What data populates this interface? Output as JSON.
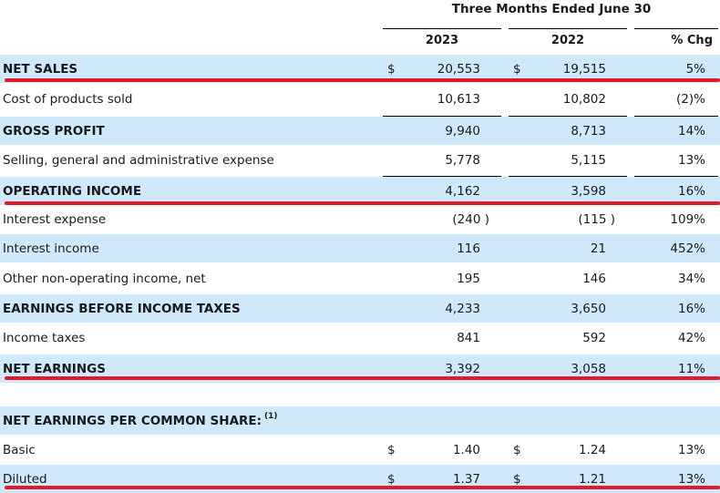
{
  "header": {
    "period_title": "Three Months Ended June 30",
    "col_2023": "2023",
    "col_2022": "2022",
    "col_chg": "% Chg"
  },
  "currency_symbol": "$",
  "rows": [
    {
      "label": "NET SALES",
      "v2023": "20,553",
      "v2022": "19,515",
      "chg": "5%"
    },
    {
      "label": "Cost of products sold",
      "v2023": "10,613",
      "v2022": "10,802",
      "chg": "(2)%"
    },
    {
      "label": "GROSS PROFIT",
      "v2023": "9,940",
      "v2022": "8,713",
      "chg": "14%"
    },
    {
      "label": "Selling, general and administrative expense",
      "v2023": "5,778",
      "v2022": "5,115",
      "chg": "13%"
    },
    {
      "label": "OPERATING INCOME",
      "v2023": "4,162",
      "v2022": "3,598",
      "chg": "16%"
    },
    {
      "label": "Interest expense",
      "v2023": "(240 )",
      "v2022": "(115 )",
      "chg": "109%"
    },
    {
      "label": "Interest income",
      "v2023": "116",
      "v2022": "21",
      "chg": "452%"
    },
    {
      "label": "Other non-operating income, net",
      "v2023": "195",
      "v2022": "146",
      "chg": "34%"
    },
    {
      "label": "EARNINGS BEFORE INCOME TAXES",
      "v2023": "4,233",
      "v2022": "3,650",
      "chg": "16%"
    },
    {
      "label": "Income taxes",
      "v2023": "841",
      "v2022": "592",
      "chg": "42%"
    },
    {
      "label": "NET EARNINGS",
      "v2023": "3,392",
      "v2022": "3,058",
      "chg": "11%"
    }
  ],
  "eps_section": {
    "title": "NET EARNINGS PER COMMON SHARE:",
    "footnote": "(1)",
    "rows": [
      {
        "label": "Basic",
        "v2023": "1.40",
        "v2022": "1.24",
        "chg": "13%"
      },
      {
        "label": "Diluted",
        "v2023": "1.37",
        "v2022": "1.21",
        "chg": "13%"
      }
    ]
  },
  "colors": {
    "row_shade": "#cfe9fa",
    "highlight_line": "#e0192d"
  }
}
